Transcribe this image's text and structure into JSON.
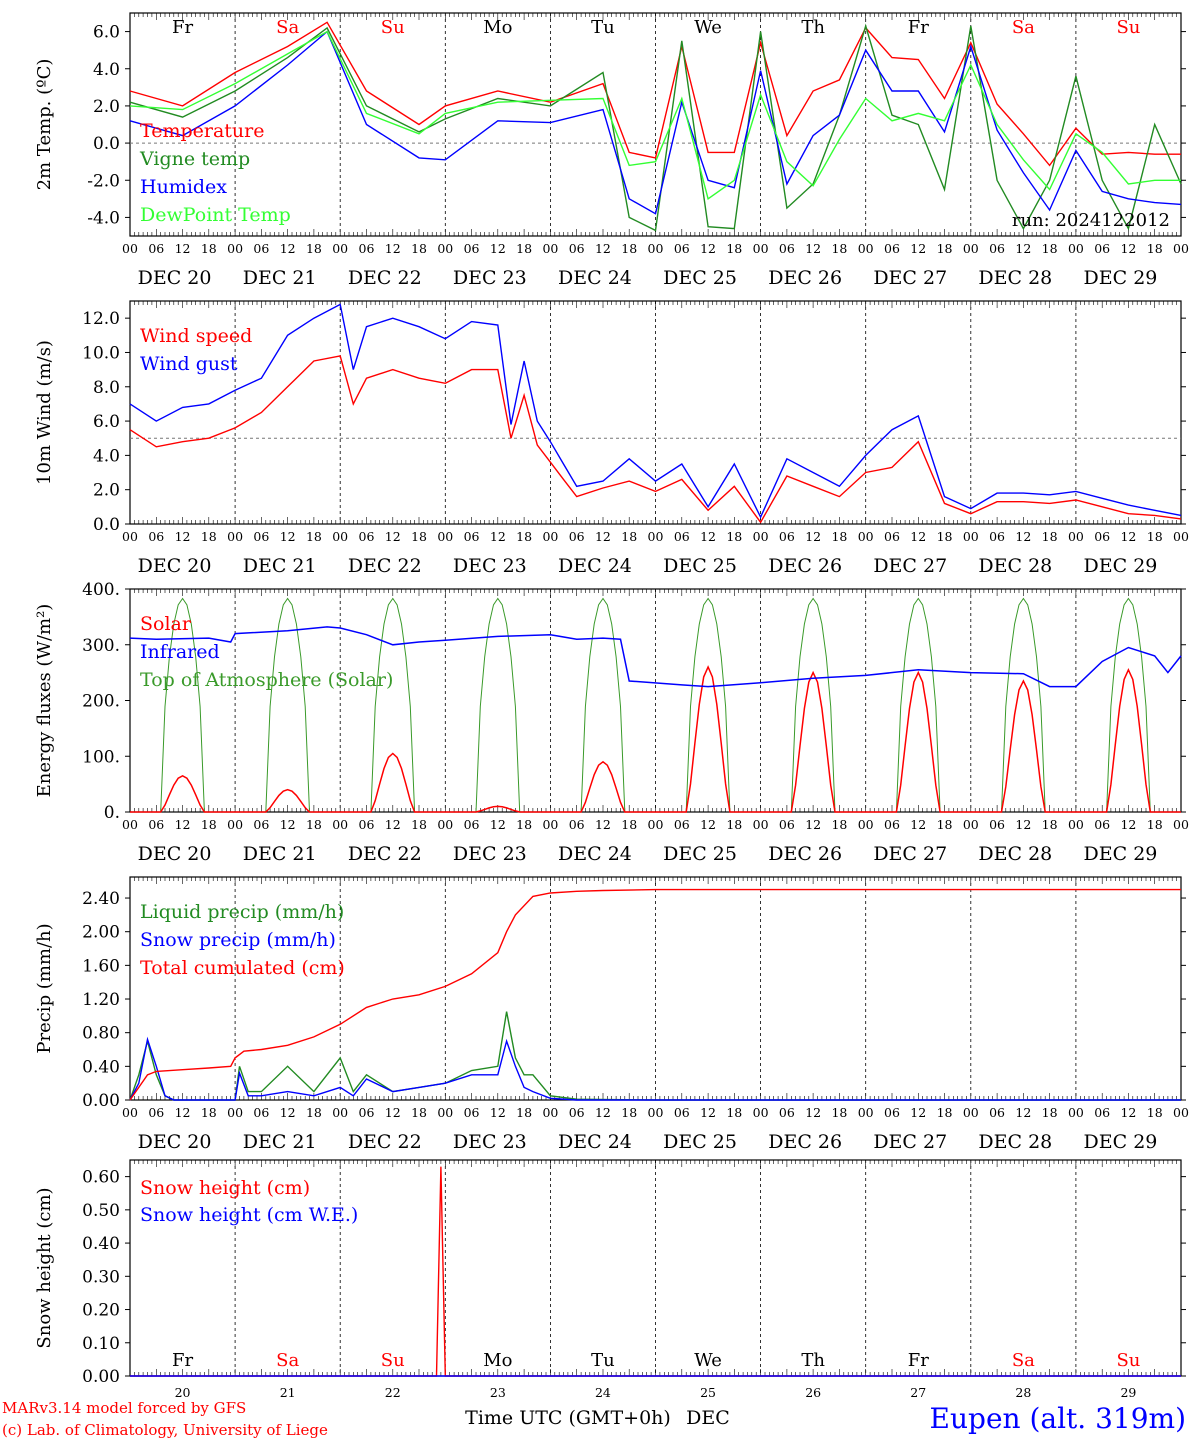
{
  "colors": {
    "red": "#ff0000",
    "green": "#228b22",
    "blue": "#0000ff",
    "lightgreen": "#33ff33",
    "darkgreen": "#3a9a2a",
    "black": "#000000"
  },
  "time_axis": {
    "hour_ticks": [
      "00",
      "06",
      "12",
      "18"
    ],
    "dates": [
      "DEC 20",
      "DEC 21",
      "DEC 22",
      "DEC 23",
      "DEC 24",
      "DEC 25",
      "DEC 26",
      "DEC 27",
      "DEC 28",
      "DEC 29"
    ],
    "weekdays": [
      {
        "label": "Fr",
        "color": "black"
      },
      {
        "label": "Sa",
        "color": "red"
      },
      {
        "label": "Su",
        "color": "red"
      },
      {
        "label": "Mo",
        "color": "black"
      },
      {
        "label": "Tu",
        "color": "black"
      },
      {
        "label": "We",
        "color": "black"
      },
      {
        "label": "Th",
        "color": "black"
      },
      {
        "label": "Fr",
        "color": "black"
      },
      {
        "label": "Sa",
        "color": "red"
      },
      {
        "label": "Su",
        "color": "red"
      }
    ],
    "day_numbers": [
      "20",
      "21",
      "22",
      "23",
      "24",
      "25",
      "26",
      "27",
      "28",
      "29"
    ],
    "xlabel": "Time UTC (GMT+0h)",
    "month": "DEC"
  },
  "footer": {
    "credit_line1": "MARv3.14 model forced by GFS",
    "credit_line2": "(c) Lab. of Climatology, University of Liege",
    "station": "Eupen (alt. 319m)"
  },
  "chart_data": [
    {
      "type": "line",
      "ylabel": "2m Temp. (ºC)",
      "ylim": [
        -5,
        7
      ],
      "yticks": [
        "-4.0",
        "-2.0",
        "0.0",
        "2.0",
        "4.0",
        "6.0"
      ],
      "ytick_values": [
        -4,
        -2,
        0,
        2,
        4,
        6
      ],
      "reference_line": 0,
      "run_label": "run: 2024122012",
      "x_unit": "hours since DEC 20 00 UTC",
      "series": [
        {
          "name": "Temperature",
          "color": "red",
          "x": [
            0,
            12,
            24,
            36,
            45,
            54,
            66,
            72,
            84,
            96,
            108,
            114,
            120,
            126,
            132,
            138,
            144,
            150,
            156,
            162,
            168,
            174,
            180,
            186,
            192,
            198,
            204,
            210,
            216,
            222,
            228,
            234,
            240
          ],
          "y": [
            2.8,
            2.0,
            3.8,
            5.2,
            6.5,
            2.8,
            1.0,
            2.0,
            2.8,
            2.2,
            3.2,
            -0.5,
            -0.8,
            5.2,
            -0.5,
            -0.5,
            5.4,
            0.4,
            2.8,
            3.4,
            6.2,
            4.6,
            4.5,
            2.4,
            5.4,
            2.1,
            0.5,
            -1.2,
            0.8,
            -0.6,
            -0.5,
            -0.6,
            -0.6
          ]
        },
        {
          "name": "Vigne temp",
          "color": "green",
          "x": [
            0,
            12,
            24,
            36,
            45,
            54,
            66,
            72,
            84,
            96,
            108,
            114,
            120,
            126,
            132,
            138,
            144,
            150,
            156,
            162,
            168,
            174,
            180,
            186,
            192,
            198,
            204,
            210,
            216,
            222,
            228,
            234,
            240
          ],
          "y": [
            2.2,
            1.4,
            2.8,
            4.6,
            6.2,
            2.0,
            0.6,
            1.3,
            2.4,
            2.0,
            3.8,
            -4.0,
            -4.7,
            5.5,
            -4.5,
            -4.6,
            6.0,
            -3.5,
            -2.2,
            1.5,
            6.3,
            1.5,
            1.0,
            -2.5,
            6.3,
            -2.0,
            -4.6,
            -2.0,
            3.6,
            -2.0,
            -4.6,
            1.0,
            -2.2
          ]
        },
        {
          "name": "Humidex",
          "color": "blue",
          "x": [
            0,
            12,
            24,
            36,
            45,
            54,
            66,
            72,
            84,
            96,
            108,
            114,
            120,
            126,
            132,
            138,
            144,
            150,
            156,
            162,
            168,
            174,
            180,
            186,
            192,
            198,
            204,
            210,
            216,
            222,
            228,
            234,
            240
          ],
          "y": [
            1.2,
            0.4,
            2.0,
            4.2,
            6.0,
            1.0,
            -0.8,
            -0.9,
            1.2,
            1.1,
            1.8,
            -3.0,
            -3.8,
            2.2,
            -2.0,
            -2.4,
            3.9,
            -2.2,
            0.4,
            1.5,
            5.0,
            2.8,
            2.8,
            0.6,
            5.2,
            0.7,
            -1.6,
            -3.6,
            -0.4,
            -2.6,
            -3.0,
            -3.2,
            -3.3
          ]
        },
        {
          "name": "DewPoint Temp",
          "color": "lightgreen",
          "x": [
            0,
            12,
            24,
            36,
            45,
            54,
            66,
            72,
            84,
            96,
            108,
            114,
            120,
            126,
            132,
            138,
            144,
            150,
            156,
            162,
            168,
            174,
            180,
            186,
            192,
            198,
            204,
            210,
            216,
            222,
            228,
            234,
            240
          ],
          "y": [
            2.0,
            1.8,
            3.2,
            4.8,
            6.0,
            1.6,
            0.5,
            1.6,
            2.2,
            2.3,
            2.4,
            -1.2,
            -1.0,
            2.4,
            -3.0,
            -2.0,
            2.6,
            -1.0,
            -2.3,
            0.2,
            2.4,
            1.2,
            1.6,
            1.2,
            4.2,
            1.0,
            -0.9,
            -2.5,
            0.5,
            -0.5,
            -2.2,
            -2.0,
            -2.0
          ]
        }
      ]
    },
    {
      "type": "line",
      "ylabel": "10m Wind (m/s)",
      "ylim": [
        0,
        13
      ],
      "yticks": [
        "0.0",
        "2.0",
        "4.0",
        "6.0",
        "8.0",
        "10.0",
        "12.0"
      ],
      "ytick_values": [
        0,
        2,
        4,
        6,
        8,
        10,
        12
      ],
      "reference_line": 5,
      "x_unit": "hours since DEC 20 00 UTC",
      "series": [
        {
          "name": "Wind speed",
          "color": "red",
          "x": [
            0,
            6,
            12,
            18,
            24,
            30,
            36,
            42,
            48,
            51,
            54,
            60,
            66,
            72,
            78,
            84,
            87,
            90,
            93,
            96,
            99,
            102,
            108,
            114,
            120,
            126,
            132,
            138,
            144,
            150,
            156,
            162,
            168,
            174,
            180,
            186,
            192,
            198,
            204,
            210,
            216,
            222,
            228,
            234,
            240
          ],
          "y": [
            5.5,
            4.5,
            4.8,
            5.0,
            5.6,
            6.5,
            8.0,
            9.5,
            9.8,
            7.0,
            8.5,
            9.0,
            8.5,
            8.2,
            9.0,
            9.0,
            5.0,
            7.5,
            4.6,
            3.6,
            2.6,
            1.6,
            2.1,
            2.5,
            1.9,
            2.6,
            0.8,
            2.2,
            0.1,
            2.8,
            2.2,
            1.6,
            3.0,
            3.3,
            4.8,
            1.2,
            0.6,
            1.3,
            1.3,
            1.2,
            1.4,
            1.0,
            0.6,
            0.5,
            0.3
          ]
        },
        {
          "name": "Wind gust",
          "color": "blue",
          "x": [
            0,
            6,
            12,
            18,
            24,
            30,
            36,
            42,
            48,
            51,
            54,
            60,
            66,
            72,
            78,
            84,
            87,
            90,
            93,
            96,
            99,
            102,
            108,
            114,
            120,
            126,
            132,
            138,
            144,
            150,
            156,
            162,
            168,
            174,
            180,
            186,
            192,
            198,
            204,
            210,
            216,
            222,
            228,
            234,
            240
          ],
          "y": [
            7.0,
            6.0,
            6.8,
            7.0,
            7.8,
            8.5,
            11.0,
            12.0,
            12.8,
            9.0,
            11.5,
            12.0,
            11.5,
            10.8,
            11.8,
            11.6,
            5.8,
            9.5,
            6.0,
            4.8,
            3.5,
            2.2,
            2.5,
            3.8,
            2.5,
            3.5,
            1.0,
            3.5,
            0.4,
            3.8,
            3.0,
            2.2,
            4.0,
            5.5,
            6.3,
            1.6,
            0.9,
            1.8,
            1.8,
            1.7,
            1.9,
            1.5,
            1.1,
            0.8,
            0.5
          ]
        }
      ]
    },
    {
      "type": "line",
      "ylabel": "Energy fluxes (W/m²)",
      "ylim": [
        0,
        400
      ],
      "yticks": [
        "0.",
        "100.",
        "200.",
        "300.",
        "400."
      ],
      "ytick_values": [
        0,
        100,
        200,
        300,
        400
      ],
      "x_unit": "hours since DEC 20 00 UTC",
      "solar_peaks": [
        65,
        40,
        105,
        10,
        90,
        260,
        250,
        250,
        235,
        255
      ],
      "toa_peak": 383,
      "series": [
        {
          "name": "Solar",
          "color": "red"
        },
        {
          "name": "Infrared",
          "color": "blue",
          "x": [
            0,
            6,
            18,
            23,
            24,
            36,
            45,
            48,
            54,
            60,
            66,
            72,
            84,
            96,
            102,
            108,
            112,
            114,
            126,
            132,
            144,
            156,
            168,
            180,
            192,
            204,
            210,
            216,
            222,
            228,
            234,
            237,
            240
          ],
          "y": [
            312,
            310,
            312,
            305,
            320,
            325,
            332,
            330,
            318,
            300,
            305,
            308,
            315,
            318,
            310,
            312,
            310,
            235,
            228,
            225,
            232,
            240,
            245,
            255,
            250,
            248,
            225,
            225,
            270,
            295,
            280,
            250,
            280
          ]
        },
        {
          "name": "Top of Atmosphere (Solar)",
          "color": "darkgreen"
        }
      ]
    },
    {
      "type": "line",
      "ylabel": "Precip (mm/h)",
      "ylim": [
        0,
        2.65
      ],
      "yticks": [
        "0.00",
        "0.40",
        "0.80",
        "1.20",
        "1.60",
        "2.00",
        "2.40"
      ],
      "ytick_values": [
        0,
        0.4,
        0.8,
        1.2,
        1.6,
        2.0,
        2.4
      ],
      "x_unit": "hours since DEC 20 00 UTC",
      "series": [
        {
          "name": "Liquid precip (mm/h)",
          "color": "green",
          "x": [
            0,
            2,
            4,
            6,
            8,
            10,
            24,
            25,
            27,
            30,
            36,
            42,
            48,
            51,
            54,
            60,
            66,
            72,
            78,
            84,
            86,
            88,
            90,
            92,
            96,
            102,
            120,
            144,
            240
          ],
          "y": [
            0,
            0.3,
            0.7,
            0.3,
            0.05,
            0,
            0,
            0.4,
            0.1,
            0.1,
            0.4,
            0.1,
            0.5,
            0.1,
            0.3,
            0.1,
            0.15,
            0.2,
            0.35,
            0.4,
            1.05,
            0.5,
            0.3,
            0.3,
            0.05,
            0.01,
            0,
            0,
            0
          ]
        },
        {
          "name": "Snow precip (mm/h)",
          "color": "blue",
          "x": [
            0,
            2,
            4,
            6,
            8,
            10,
            24,
            25,
            27,
            30,
            36,
            42,
            48,
            51,
            54,
            60,
            66,
            72,
            78,
            84,
            86,
            88,
            90,
            92,
            96,
            102,
            120,
            144,
            240
          ],
          "y": [
            0,
            0.2,
            0.72,
            0.4,
            0.05,
            0,
            0,
            0.32,
            0.05,
            0.05,
            0.1,
            0.05,
            0.15,
            0.05,
            0.25,
            0.1,
            0.15,
            0.2,
            0.3,
            0.3,
            0.7,
            0.4,
            0.15,
            0.1,
            0.02,
            0,
            0,
            0,
            0
          ]
        },
        {
          "name": "Total cumulated (cm)",
          "color": "red",
          "x": [
            0,
            4,
            6,
            12,
            18,
            23,
            24,
            26,
            30,
            36,
            42,
            48,
            54,
            60,
            66,
            72,
            78,
            84,
            86,
            88,
            92,
            96,
            102,
            108,
            120,
            144,
            240
          ],
          "y": [
            0,
            0.3,
            0.34,
            0.36,
            0.38,
            0.4,
            0.5,
            0.58,
            0.6,
            0.65,
            0.75,
            0.9,
            1.1,
            1.2,
            1.25,
            1.35,
            1.5,
            1.75,
            2.0,
            2.2,
            2.42,
            2.46,
            2.48,
            2.49,
            2.5,
            2.5,
            2.5
          ]
        }
      ]
    },
    {
      "type": "line",
      "ylabel": "Snow height (cm)",
      "ylim": [
        0,
        0.65
      ],
      "yticks": [
        "0.00",
        "0.10",
        "0.20",
        "0.30",
        "0.40",
        "0.50",
        "0.60"
      ],
      "ytick_values": [
        0,
        0.1,
        0.2,
        0.3,
        0.4,
        0.5,
        0.6
      ],
      "x_unit": "hours since DEC 20 00 UTC",
      "series": [
        {
          "name": "Snow height (cm)",
          "color": "red",
          "x": [
            0,
            70,
            71,
            72,
            240
          ],
          "y": [
            0,
            0,
            0.63,
            0,
            0
          ]
        },
        {
          "name": "Snow height (cm W.E.)",
          "color": "blue",
          "x": [
            0,
            240
          ],
          "y": [
            0,
            0
          ]
        }
      ]
    }
  ]
}
